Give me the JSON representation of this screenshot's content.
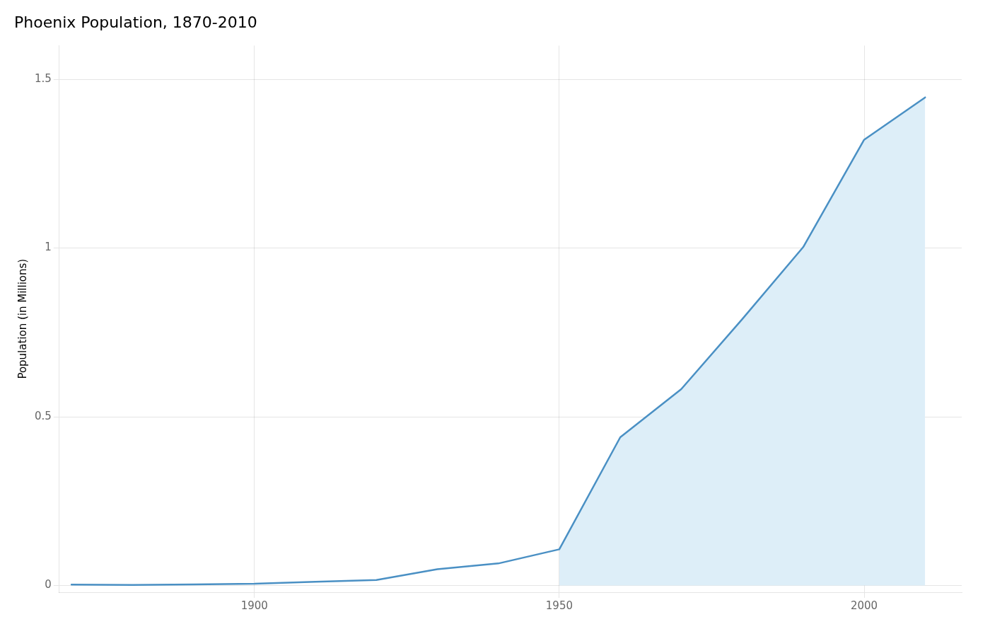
{
  "chart_data": {
    "type": "line",
    "title": "Phoenix Population, 1870-2010",
    "ylabel": "Population (in Millions)",
    "x": [
      1870,
      1880,
      1890,
      1900,
      1910,
      1920,
      1930,
      1940,
      1950,
      1960,
      1970,
      1980,
      1990,
      2000,
      2010
    ],
    "series": [
      {
        "type": "area",
        "color": "#ddeef8",
        "values": [
          null,
          null,
          null,
          null,
          null,
          null,
          null,
          null,
          0.10718,
          0.43921,
          0.58169,
          0.789,
          1.00266,
          1.32108,
          1.44632
        ]
      },
      {
        "type": "line",
        "color": "#4a90c4",
        "values": [
          0.0024,
          0.00175,
          0.00325,
          0.005,
          0.01114,
          0.01609,
          0.04821,
          0.06523,
          0.10718,
          0.43921,
          0.58169,
          0.789,
          1.00266,
          1.32108,
          1.44632
        ]
      }
    ],
    "xlim": [
      1868,
      2016
    ],
    "xticks": [
      1900,
      1950,
      2000
    ],
    "ylim": [
      -0.02,
      1.6
    ],
    "yticks": [
      0,
      0.5,
      1,
      1.5
    ],
    "grid": true
  }
}
